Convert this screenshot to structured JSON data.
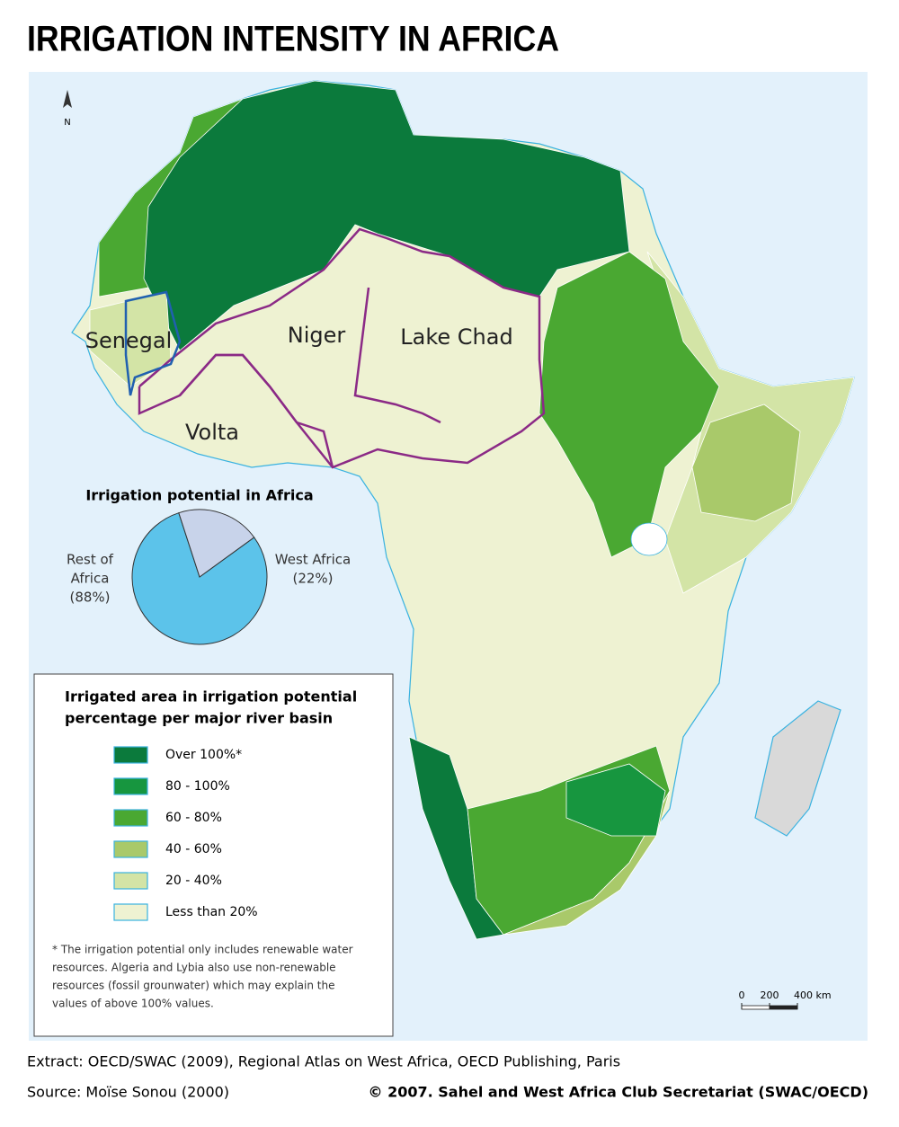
{
  "title": "IRRIGATION INTENSITY IN AFRICA",
  "map": {
    "north_label": "N",
    "basin_labels": [
      "Senegal",
      "Niger",
      "Lake Chad",
      "Volta"
    ],
    "scale_bar": {
      "ticks": [
        0,
        200,
        {
          "value": 400,
          "label": "400 km"
        }
      ]
    }
  },
  "pie": {
    "type": "pie",
    "title": "Irrigation potential in Africa",
    "label_lines": [
      [
        "Rest of",
        "Africa"
      ],
      [
        "West Africa"
      ]
    ],
    "values": [
      88,
      22
    ],
    "value_labels": [
      "(88%)",
      "(22%)"
    ],
    "colors": [
      "#5cc3ea",
      "#c8d3ea"
    ]
  },
  "legend": {
    "title_lines": [
      "Irrigated area in irrigation potential",
      "percentage per major river basin"
    ],
    "items": [
      {
        "label": "Over 100%*",
        "color": "#0b7a3c"
      },
      {
        "label": "80 - 100%",
        "color": "#17963f"
      },
      {
        "label": "60 - 80%",
        "color": "#4aa832"
      },
      {
        "label": "40 - 60%",
        "color": "#a9c96a"
      },
      {
        "label": "20 - 40%",
        "color": "#d3e4a6"
      },
      {
        "label": "Less than 20%",
        "color": "#eef2d2"
      }
    ],
    "footnote_lines": [
      "* The irrigation potential only includes renewable water",
      "resources. Algeria and Lybia also use non-renewable",
      "resources (fossil grounwater) which may explain the",
      "values of above 100% values."
    ]
  },
  "footer": {
    "extract": "Extract: OECD/SWAC (2009), Regional Atlas on West Africa, OECD Publishing, Paris",
    "source": "Source: Moïse Sonou (2000)",
    "copyright": "© 2007. Sahel and West Africa Club Secretariat (SWAC/OECD)"
  }
}
